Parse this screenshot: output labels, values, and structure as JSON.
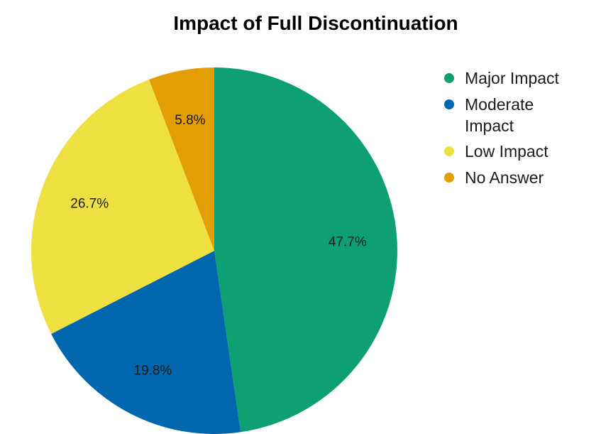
{
  "chart_data": {
    "type": "pie",
    "title": "Impact of Full Discontinuation",
    "start_angle_deg": 0,
    "direction": "clockwise",
    "legend_position": "right",
    "slices": [
      {
        "label": "Major Impact",
        "legend_lines": [
          "Major Impact"
        ],
        "value": 47.7,
        "value_label": "47.7%",
        "color": "#0e9f72"
      },
      {
        "label": "Moderate Impact",
        "legend_lines": [
          "Moderate",
          "Impact"
        ],
        "value": 19.8,
        "value_label": "19.8%",
        "color": "#0066ad"
      },
      {
        "label": "Low Impact",
        "legend_lines": [
          "Low Impact"
        ],
        "value": 26.7,
        "value_label": "26.7%",
        "color": "#efe041"
      },
      {
        "label": "No Answer",
        "legend_lines": [
          "No Answer"
        ],
        "value": 5.8,
        "value_label": "5.8%",
        "color": "#e39e04"
      }
    ]
  }
}
